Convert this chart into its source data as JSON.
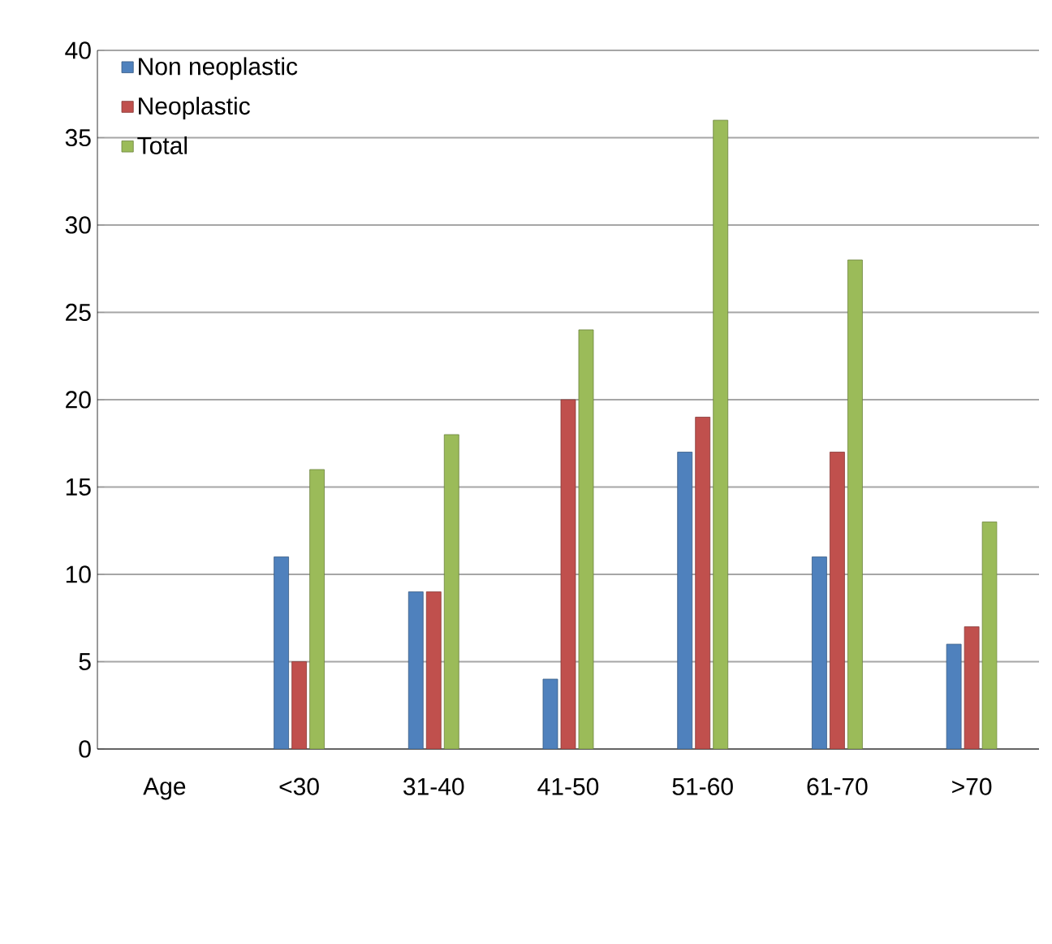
{
  "chart_data": {
    "type": "bar",
    "categories": [
      "Age",
      "<30",
      "31-40",
      "41-50",
      "51-60",
      "61-70",
      ">70"
    ],
    "series": [
      {
        "name": "Non neoplastic",
        "color": "#4f81bd",
        "values": [
          null,
          11,
          9,
          4,
          17,
          11,
          6
        ]
      },
      {
        "name": "Neoplastic",
        "color": "#c0504d",
        "values": [
          null,
          5,
          9,
          20,
          19,
          17,
          7
        ]
      },
      {
        "name": "Total",
        "color": "#9bbb59",
        "values": [
          null,
          16,
          18,
          24,
          36,
          28,
          13
        ]
      }
    ],
    "ylim": [
      0,
      40
    ],
    "yticks": [
      0,
      5,
      10,
      15,
      20,
      25,
      30,
      35,
      40
    ],
    "grid": "y",
    "legend": "top left"
  }
}
